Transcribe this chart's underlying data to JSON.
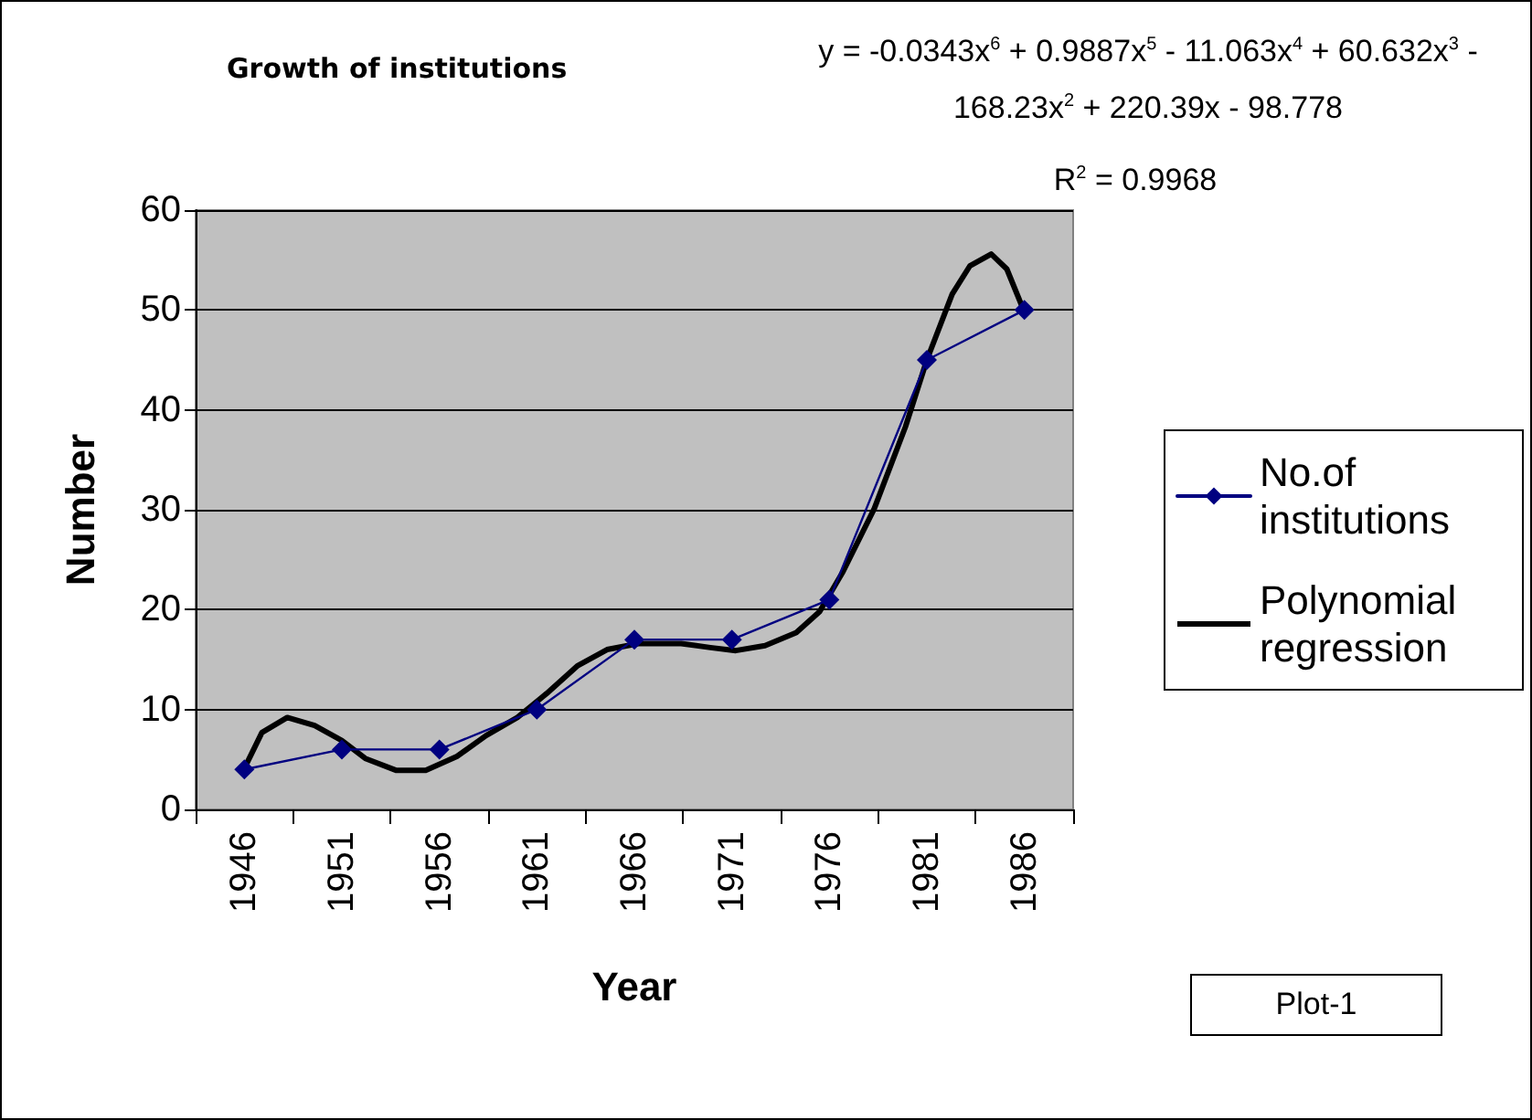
{
  "chart_data": {
    "type": "line",
    "title": "Growth of institutions",
    "xlabel": "Year",
    "ylabel": "Number",
    "x": [
      1946,
      1951,
      1956,
      1961,
      1966,
      1971,
      1976,
      1981,
      1986
    ],
    "xlim": [
      1943.5,
      1988.5
    ],
    "xticks": [
      {
        "value": 1943.5,
        "label": null
      },
      {
        "value": 1946,
        "label": "1946"
      },
      {
        "value": 1948.5,
        "label": null
      },
      {
        "value": 1951,
        "label": "1951"
      },
      {
        "value": 1953.5,
        "label": null
      },
      {
        "value": 1956,
        "label": "1956"
      },
      {
        "value": 1958.5,
        "label": null
      },
      {
        "value": 1961,
        "label": "1961"
      },
      {
        "value": 1963.5,
        "label": null
      },
      {
        "value": 1966,
        "label": "1966"
      },
      {
        "value": 1968.5,
        "label": null
      },
      {
        "value": 1971,
        "label": "1971"
      },
      {
        "value": 1973.5,
        "label": null
      },
      {
        "value": 1976,
        "label": "1976"
      },
      {
        "value": 1978.5,
        "label": null
      },
      {
        "value": 1981,
        "label": "1981"
      },
      {
        "value": 1983.5,
        "label": null
      },
      {
        "value": 1986,
        "label": "1986"
      },
      {
        "value": 1988.5,
        "label": null
      }
    ],
    "series": [
      {
        "name": "No.of institutions",
        "color": "#000080",
        "values": [
          4,
          6,
          6,
          10,
          17,
          17,
          21,
          45,
          50
        ],
        "marker": "diamond"
      },
      {
        "name": "Polynomial regression",
        "color": "#000000",
        "type": "line",
        "marker": "none",
        "x": [
          1946,
          1946.9,
          1948.2,
          1949.6,
          1951,
          1952.2,
          1953.8,
          1955.3,
          1956.9,
          1958.4,
          1960,
          1961.5,
          1963.1,
          1964.6,
          1966.2,
          1968.4,
          1969.9,
          1971.2,
          1972.7,
          1974.3,
          1975.5,
          1976.7,
          1978.3,
          1979.9,
          1981,
          1982.3,
          1983.2,
          1984.3,
          1985.1,
          1986
        ],
        "values": [
          4.1,
          7.7,
          9.2,
          8.4,
          6.9,
          5.1,
          3.9,
          3.9,
          5.3,
          7.4,
          9.2,
          11.6,
          14.4,
          16,
          16.6,
          16.6,
          16.2,
          15.9,
          16.4,
          17.7,
          19.8,
          23.8,
          30.1,
          38.3,
          45,
          51.6,
          54.4,
          55.6,
          54.1,
          49.8
        ]
      }
    ],
    "ylim": [
      0,
      60
    ],
    "yticks": [
      0,
      10,
      20,
      30,
      40,
      50,
      60
    ],
    "grid": "y",
    "legend": "right",
    "line_style": "solid",
    "annotations": [
      "y = -0.0343x$^{6}$ + 0.9887x$^{5}$ - 11.063x$^{4}$ + 60.632x$^{3}$ - 168.23x$^{2}$ + 220.39x - 98.778",
      "R$^{2}$ = 0.9968",
      "Plot-1"
    ]
  }
}
